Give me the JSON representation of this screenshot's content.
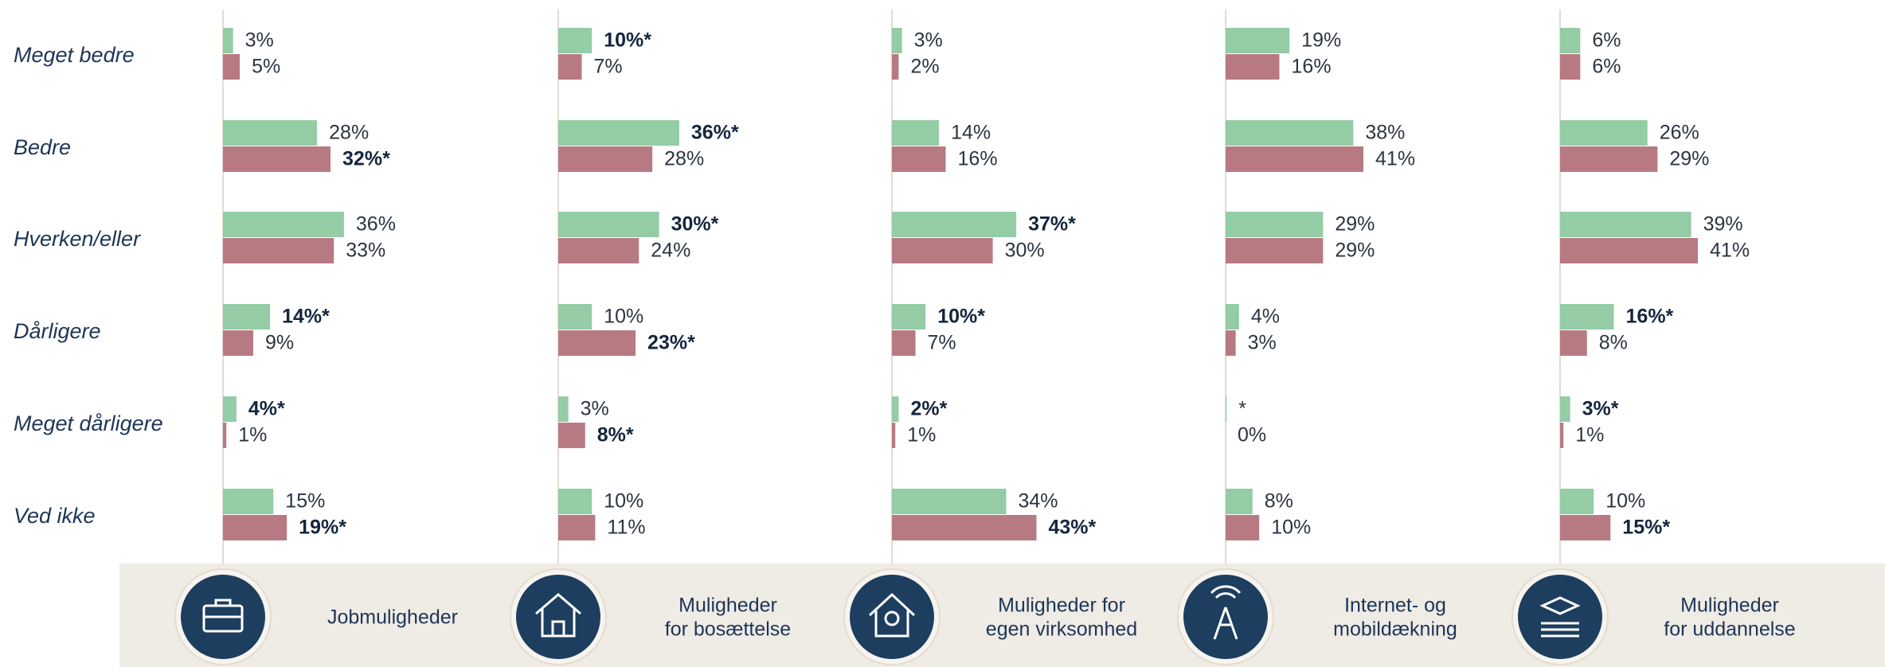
{
  "categories": [
    "Meget bedre",
    "Bedre",
    "Hverken/eller",
    "Dårligere",
    "Meget dårligere",
    "Ved ikke"
  ],
  "chart_data": [
    {
      "type": "bar",
      "orientation": "horizontal",
      "title": [
        "Jobmuligheder"
      ],
      "xlim": [
        0,
        100
      ],
      "series": [
        {
          "color": "#93cca5",
          "values": [
            3,
            28,
            36,
            14,
            4,
            15
          ],
          "value_labels": [
            "3%",
            "28%",
            "36%",
            "14%*",
            "4%*",
            "15%"
          ]
        },
        {
          "color": "#b87a82",
          "values": [
            5,
            32,
            33,
            9,
            1,
            19
          ],
          "value_labels": [
            "5%",
            "32%*",
            "33%",
            "9%",
            "1%",
            "19%*"
          ]
        }
      ]
    },
    {
      "type": "bar",
      "orientation": "horizontal",
      "title": [
        "Muligheder",
        "for bosættelse"
      ],
      "xlim": [
        0,
        100
      ],
      "series": [
        {
          "color": "#93cca5",
          "values": [
            10,
            36,
            30,
            10,
            3,
            10
          ],
          "value_labels": [
            "10%*",
            "36%*",
            "30%*",
            "10%",
            "3%",
            "10%"
          ]
        },
        {
          "color": "#b87a82",
          "values": [
            7,
            28,
            24,
            23,
            8,
            11
          ],
          "value_labels": [
            "7%",
            "28%",
            "24%",
            "23%*",
            "8%*",
            "11%"
          ]
        }
      ]
    },
    {
      "type": "bar",
      "orientation": "horizontal",
      "title": [
        "Muligheder for",
        "egen virksomhed"
      ],
      "xlim": [
        0,
        100
      ],
      "series": [
        {
          "color": "#93cca5",
          "values": [
            3,
            14,
            37,
            10,
            2,
            34
          ],
          "value_labels": [
            "3%",
            "14%",
            "37%*",
            "10%*",
            "2%*",
            "34%"
          ]
        },
        {
          "color": "#b87a82",
          "values": [
            2,
            16,
            30,
            7,
            1,
            43
          ],
          "value_labels": [
            "2%",
            "16%",
            "30%",
            "7%",
            "1%",
            "43%*"
          ]
        }
      ]
    },
    {
      "type": "bar",
      "orientation": "horizontal",
      "title": [
        "Internet- og",
        "mobildækning"
      ],
      "xlim": [
        0,
        100
      ],
      "series": [
        {
          "color": "#93cca5",
          "values": [
            19,
            38,
            29,
            4,
            0.3,
            8
          ],
          "value_labels": [
            "19%",
            "38%",
            "29%",
            "4%",
            "*",
            "8%"
          ]
        },
        {
          "color": "#b87a82",
          "values": [
            16,
            41,
            29,
            3,
            0,
            10
          ],
          "value_labels": [
            "16%",
            "41%",
            "29%",
            "3%",
            "0%",
            "10%"
          ]
        }
      ]
    },
    {
      "type": "bar",
      "orientation": "horizontal",
      "title": [
        "Muligheder",
        "for uddannelse"
      ],
      "xlim": [
        0,
        100
      ],
      "series": [
        {
          "color": "#93cca5",
          "values": [
            6,
            26,
            39,
            16,
            3,
            10
          ],
          "value_labels": [
            "6%",
            "26%",
            "39%",
            "16%*",
            "3%*",
            "10%"
          ]
        },
        {
          "color": "#b87a82",
          "values": [
            6,
            29,
            41,
            8,
            1,
            15
          ],
          "value_labels": [
            "6%",
            "29%",
            "41%",
            "8%",
            "1%",
            "15%*"
          ]
        }
      ]
    }
  ]
}
